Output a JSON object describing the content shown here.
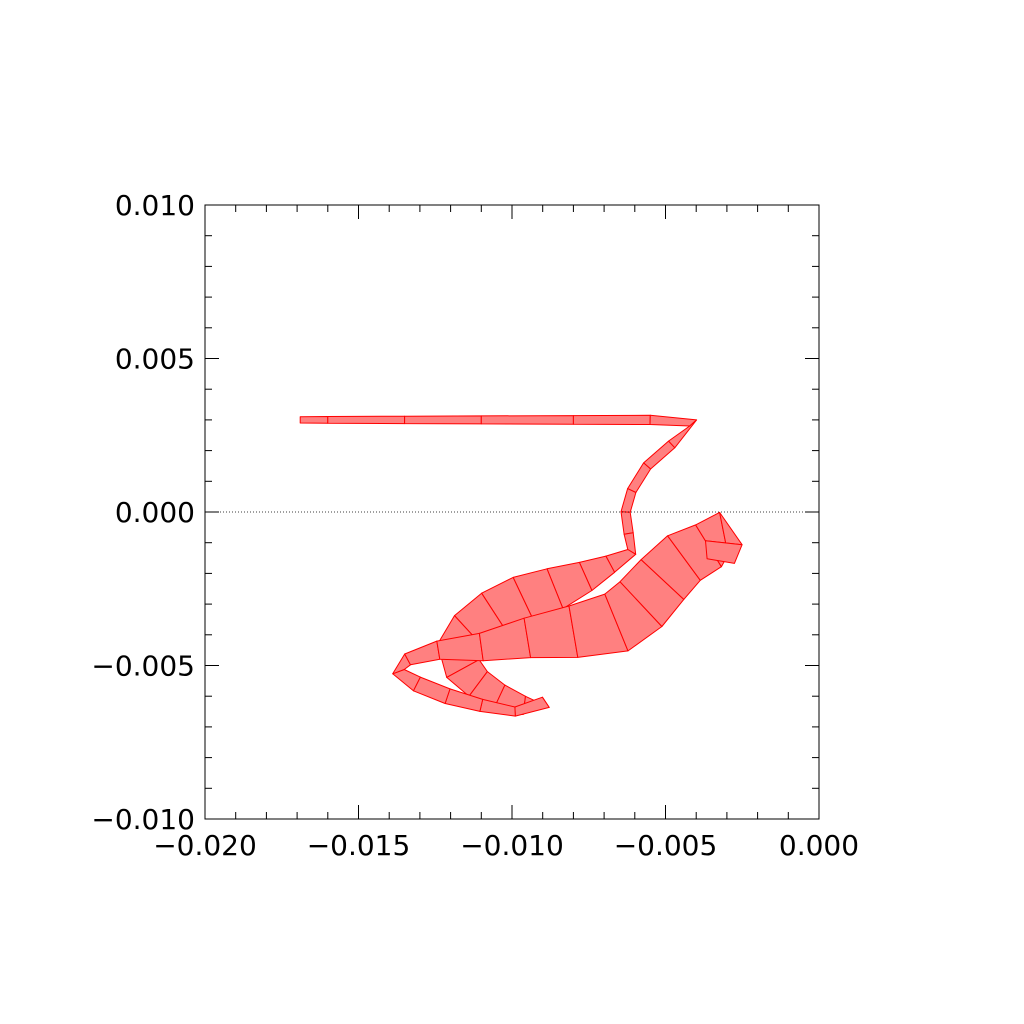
{
  "chart_data": {
    "type": "area",
    "title": "",
    "xlabel": "",
    "ylabel": "",
    "xlim": [
      -0.02,
      0.0
    ],
    "ylim": [
      -0.01,
      0.01
    ],
    "x_major_ticks": [
      -0.02,
      -0.015,
      -0.01,
      -0.005,
      0.0
    ],
    "y_major_ticks": [
      -0.01,
      -0.005,
      0.0,
      0.005,
      0.01
    ],
    "x_tick_labels": [
      "−0.020",
      "−0.015",
      "−0.010",
      "−0.005",
      "0.000"
    ],
    "y_tick_labels": [
      "−0.010",
      "−0.005",
      "0.000",
      "0.005",
      "0.010"
    ],
    "x_minor_step": 0.001,
    "y_minor_step": 0.001,
    "zero_line": {
      "y": 0.0,
      "style": "dotted"
    },
    "grid": false,
    "colors": {
      "fill": "#ff8080",
      "stroke": "#ff0000",
      "axis": "#000000"
    },
    "ribbon": {
      "centerline": [
        [
          -0.0169,
          0.003
        ],
        [
          -0.016,
          0.003
        ],
        [
          -0.0135,
          0.003
        ],
        [
          -0.011,
          0.003
        ],
        [
          -0.008,
          0.003
        ],
        [
          -0.0055,
          0.003
        ],
        [
          -0.0041,
          0.0029
        ],
        [
          -0.0048,
          0.0022
        ],
        [
          -0.0056,
          0.0015
        ],
        [
          -0.0061,
          0.0007
        ],
        [
          -0.0063,
          0.0
        ],
        [
          -0.0062,
          -0.0007
        ],
        [
          -0.0061,
          -0.0013
        ],
        [
          -0.0068,
          -0.0017
        ],
        [
          -0.0076,
          -0.0021
        ],
        [
          -0.0086,
          -0.0025
        ],
        [
          -0.0096,
          -0.0029
        ],
        [
          -0.0105,
          -0.0034
        ],
        [
          -0.0113,
          -0.004
        ],
        [
          -0.0117,
          -0.0045
        ],
        [
          -0.0116,
          -0.0051
        ],
        [
          -0.0111,
          -0.0056
        ],
        [
          -0.0104,
          -0.006
        ],
        [
          -0.0096,
          -0.0063
        ],
        [
          -0.0089,
          -0.0062
        ],
        [
          -0.0099,
          -0.0065
        ],
        [
          -0.011,
          -0.0063
        ],
        [
          -0.0121,
          -0.006
        ],
        [
          -0.0131,
          -0.0056
        ],
        [
          -0.0137,
          -0.0052
        ],
        [
          -0.0134,
          -0.0048
        ],
        [
          -0.0124,
          -0.0045
        ],
        [
          -0.011,
          -0.0044
        ],
        [
          -0.0095,
          -0.0041
        ],
        [
          -0.008,
          -0.0039
        ],
        [
          -0.0066,
          -0.0036
        ],
        [
          -0.0058,
          -0.003
        ],
        [
          -0.0051,
          -0.0022
        ],
        [
          -0.0044,
          -0.0015
        ],
        [
          -0.0036,
          -0.0011
        ],
        [
          -0.0031,
          -0.0007
        ],
        [
          -0.0031,
          -0.001
        ],
        [
          -0.0032,
          -0.0016
        ]
      ],
      "width": [
        0.0002,
        0.00022,
        0.00024,
        0.00026,
        0.00028,
        0.0003,
        0.0003,
        0.0003,
        0.0003,
        0.0003,
        0.0003,
        0.0003,
        0.0003,
        0.0006,
        0.001,
        0.0014,
        0.0017,
        0.0018,
        0.0017,
        0.0015,
        0.0012,
        0.001,
        0.0008,
        0.0006,
        0.0004,
        0.0003,
        0.0004,
        0.0005,
        0.0005,
        0.0004,
        0.0004,
        0.0006,
        0.0009,
        0.0013,
        0.0017,
        0.002,
        0.002,
        0.0019,
        0.0018,
        0.0016,
        0.0014,
        0.0012,
        0.0009
      ]
    }
  }
}
